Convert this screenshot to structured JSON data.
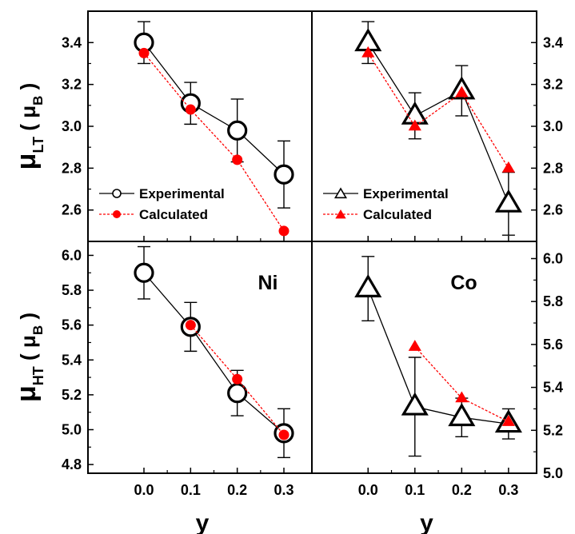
{
  "chart_data": [
    {
      "type": "line",
      "panel": "top-left",
      "xlabel": "",
      "ylabel_main": "μ",
      "ylabel_sub": "LT",
      "ylabel_unit_main": "μ",
      "ylabel_unit_sub": "B",
      "x": [
        0.0,
        0.1,
        0.2,
        0.3
      ],
      "xlim": [
        -0.12,
        0.36
      ],
      "ylim": [
        2.45,
        3.55
      ],
      "x_ticks": [
        "0.0",
        "0.1",
        "0.2",
        "0.3"
      ],
      "y_ticks": [
        2.6,
        2.8,
        3.0,
        3.2,
        3.4
      ],
      "y_tick_labels": [
        "2.6",
        "2.8",
        "3.0",
        "3.2",
        "3.4"
      ],
      "y_tick_side": "left",
      "marker": "circle",
      "legend": {
        "placement": "bottom-left",
        "items": [
          "Experimental",
          "Calculated"
        ]
      },
      "series": [
        {
          "name": "Experimental",
          "color": "#000000",
          "values": [
            3.4,
            3.11,
            2.98,
            2.77
          ],
          "err": [
            0.1,
            0.1,
            0.15,
            0.16
          ]
        },
        {
          "name": "Calculated",
          "color": "#ff0000",
          "values": [
            3.35,
            3.08,
            2.84,
            2.5
          ]
        }
      ]
    },
    {
      "type": "line",
      "panel": "top-right",
      "xlabel": "",
      "x": [
        0.0,
        0.1,
        0.2,
        0.3
      ],
      "xlim": [
        -0.12,
        0.36
      ],
      "ylim": [
        2.45,
        3.55
      ],
      "x_ticks": [
        "0.0",
        "0.1",
        "0.2",
        "0.3"
      ],
      "y_ticks": [
        2.6,
        2.8,
        3.0,
        3.2,
        3.4
      ],
      "y_tick_labels": [
        "2.6",
        "2.8",
        "3.0",
        "3.2",
        "3.4"
      ],
      "y_tick_side": "right",
      "marker": "triangle",
      "legend": {
        "placement": "bottom-left",
        "items": [
          "Experimental",
          "Calculated"
        ]
      },
      "series": [
        {
          "name": "Experimental",
          "color": "#000000",
          "values": [
            3.4,
            3.05,
            3.17,
            2.63
          ],
          "err": [
            0.1,
            0.11,
            0.12,
            0.15
          ]
        },
        {
          "name": "Calculated",
          "color": "#ff0000",
          "values": [
            3.35,
            3.0,
            3.16,
            2.8
          ]
        }
      ]
    },
    {
      "type": "line",
      "panel": "bottom-left",
      "annotation": "Ni",
      "xlabel": "y",
      "ylabel_main": "μ",
      "ylabel_sub": "HT",
      "ylabel_unit_main": "μ",
      "ylabel_unit_sub": "B",
      "x": [
        0.0,
        0.1,
        0.2,
        0.3
      ],
      "xlim": [
        -0.12,
        0.36
      ],
      "ylim": [
        4.75,
        6.08
      ],
      "x_ticks": [
        "0.0",
        "0.1",
        "0.2",
        "0.3"
      ],
      "y_ticks": [
        4.8,
        5.0,
        5.2,
        5.4,
        5.6,
        5.8,
        6.0
      ],
      "y_tick_labels": [
        "4.8",
        "5.0",
        "5.2",
        "5.4",
        "5.6",
        "5.8",
        "6.0"
      ],
      "y_tick_side": "left",
      "marker": "circle",
      "series": [
        {
          "name": "Experimental",
          "color": "#000000",
          "values": [
            5.9,
            5.59,
            5.21,
            4.98
          ],
          "err": [
            0.15,
            0.14,
            0.13,
            0.14
          ]
        },
        {
          "name": "Calculated",
          "color": "#ff0000",
          "values": [
            null,
            5.6,
            5.29,
            4.97
          ]
        }
      ]
    },
    {
      "type": "line",
      "panel": "bottom-right",
      "annotation": "Co",
      "xlabel": "y",
      "x": [
        0.0,
        0.1,
        0.2,
        0.3
      ],
      "xlim": [
        -0.12,
        0.36
      ],
      "ylim": [
        5.0,
        6.08
      ],
      "x_ticks": [
        "0.0",
        "0.1",
        "0.2",
        "0.3"
      ],
      "y_ticks": [
        5.0,
        5.2,
        5.4,
        5.6,
        5.8,
        6.0
      ],
      "y_tick_labels": [
        "5.0",
        "5.2",
        "5.4",
        "5.6",
        "5.8",
        "6.0"
      ],
      "y_tick_side": "right",
      "marker": "triangle",
      "series": [
        {
          "name": "Experimental",
          "color": "#000000",
          "values": [
            5.86,
            5.31,
            5.26,
            5.23
          ],
          "err": [
            0.15,
            0.23,
            0.09,
            0.07
          ]
        },
        {
          "name": "Calculated",
          "color": "#ff0000",
          "values": [
            null,
            5.59,
            5.35,
            5.24
          ]
        }
      ]
    }
  ]
}
